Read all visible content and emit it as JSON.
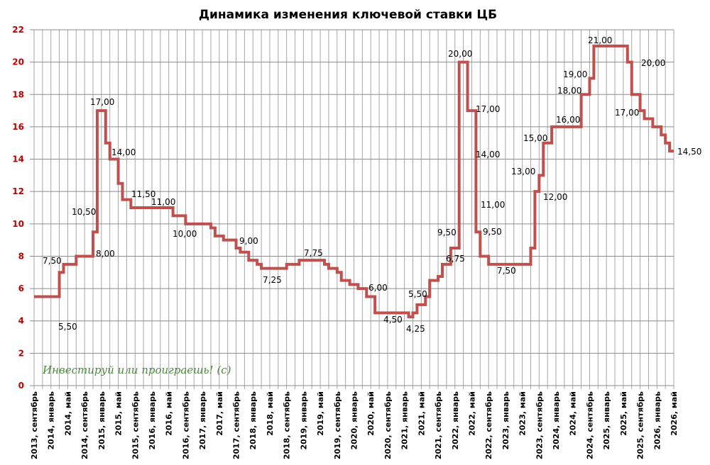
{
  "chart_data": {
    "type": "line",
    "title": "Динамика изменения ключевой ставки ЦБ",
    "xlabel": "",
    "ylabel": "",
    "ylim": [
      0,
      22
    ],
    "yticks": [
      0,
      2,
      4,
      6,
      8,
      10,
      12,
      14,
      16,
      18,
      20,
      22
    ],
    "xlim": [
      "2013-09",
      "2026-05"
    ],
    "grid": true,
    "step": true,
    "line_color": "#c0504d",
    "ytick_color": "#c00000",
    "xtick_labels": [
      "2013, сентябрь",
      "2014, январь",
      "2014, май",
      "2014, сентябрь",
      "2015, январь",
      "2015, май",
      "2015, сентябрь",
      "2016, январь",
      "2016, май",
      "2016, сентябрь",
      "2017, январь",
      "2017, май",
      "2017, сентябрь",
      "2018, январь",
      "2018, май",
      "2018, сентябрь",
      "2019, январь",
      "2019, май",
      "2019, сентябрь",
      "2020, январь",
      "2020, май",
      "2020, сентябрь",
      "2021, январь",
      "2021, май",
      "2021, сентябрь",
      "2022, январь",
      "2022, май",
      "2022, сентябрь",
      "2023, январь",
      "2023, май",
      "2023, сентябрь",
      "2024, январь",
      "2024, май",
      "2024, сентябрь",
      "2025, январь",
      "2025, май",
      "2025, сентябрь",
      "2026, январь",
      "2026, май"
    ],
    "steps": [
      [
        "2013-09",
        5.5
      ],
      [
        "2014-03",
        7.0
      ],
      [
        "2014-04",
        7.5
      ],
      [
        "2014-07",
        8.0
      ],
      [
        "2014-11",
        9.5
      ],
      [
        "2014-12",
        10.5
      ],
      [
        "2014-12",
        17.0
      ],
      [
        "2015-02",
        15.0
      ],
      [
        "2015-03",
        14.0
      ],
      [
        "2015-05",
        12.5
      ],
      [
        "2015-06",
        11.5
      ],
      [
        "2015-08",
        11.0
      ],
      [
        "2016-06",
        10.5
      ],
      [
        "2016-09",
        10.0
      ],
      [
        "2017-03",
        9.75
      ],
      [
        "2017-04",
        9.25
      ],
      [
        "2017-06",
        9.0
      ],
      [
        "2017-09",
        8.5
      ],
      [
        "2017-10",
        8.25
      ],
      [
        "2017-12",
        7.75
      ],
      [
        "2018-02",
        7.5
      ],
      [
        "2018-03",
        7.25
      ],
      [
        "2018-09",
        7.5
      ],
      [
        "2018-12",
        7.75
      ],
      [
        "2019-06",
        7.5
      ],
      [
        "2019-07",
        7.25
      ],
      [
        "2019-09",
        7.0
      ],
      [
        "2019-10",
        6.5
      ],
      [
        "2019-12",
        6.25
      ],
      [
        "2020-02",
        6.0
      ],
      [
        "2020-04",
        5.5
      ],
      [
        "2020-06",
        4.5
      ],
      [
        "2021-02",
        4.25
      ],
      [
        "2021-03",
        4.5
      ],
      [
        "2021-04",
        5.0
      ],
      [
        "2021-06",
        5.5
      ],
      [
        "2021-07",
        6.5
      ],
      [
        "2021-09",
        6.75
      ],
      [
        "2021-10",
        7.5
      ],
      [
        "2021-12",
        8.5
      ],
      [
        "2022-02",
        9.5
      ],
      [
        "2022-02",
        20.0
      ],
      [
        "2022-04",
        17.0
      ],
      [
        "2022-06",
        14.0
      ],
      [
        "2022-06",
        11.0
      ],
      [
        "2022-06",
        9.5
      ],
      [
        "2022-07",
        8.0
      ],
      [
        "2022-09",
        7.5
      ],
      [
        "2023-07",
        8.5
      ],
      [
        "2023-08",
        12.0
      ],
      [
        "2023-09",
        13.0
      ],
      [
        "2023-10",
        15.0
      ],
      [
        "2023-12",
        16.0
      ],
      [
        "2024-07",
        18.0
      ],
      [
        "2024-09",
        19.0
      ],
      [
        "2024-10",
        21.0
      ],
      [
        "2025-06",
        20.0
      ],
      [
        "2025-07",
        18.0
      ],
      [
        "2025-09",
        17.0
      ],
      [
        "2025-10",
        16.5
      ],
      [
        "2025-12",
        16.0
      ],
      [
        "2026-02",
        15.5
      ],
      [
        "2026-03",
        15.0
      ],
      [
        "2026-04",
        14.5
      ]
    ],
    "data_labels": [
      "7,50",
      "5,50",
      "10,50",
      "8,00",
      "17,00",
      "14,00",
      "11,50",
      "11,00",
      "10,00",
      "9,00",
      "7,25",
      "7,75",
      "6,00",
      "4,50",
      "4,25",
      "5,50",
      "6,75",
      "9,50",
      "20,00",
      "17,00",
      "14,00",
      "11,00",
      "9,50",
      "7,50",
      "13,00",
      "12,00",
      "15,00",
      "16,00",
      "18,00",
      "19,00",
      "21,00",
      "20,00",
      "17,00",
      "14,50"
    ],
    "watermark": "Инвестируй или проиграешь! (с)"
  }
}
